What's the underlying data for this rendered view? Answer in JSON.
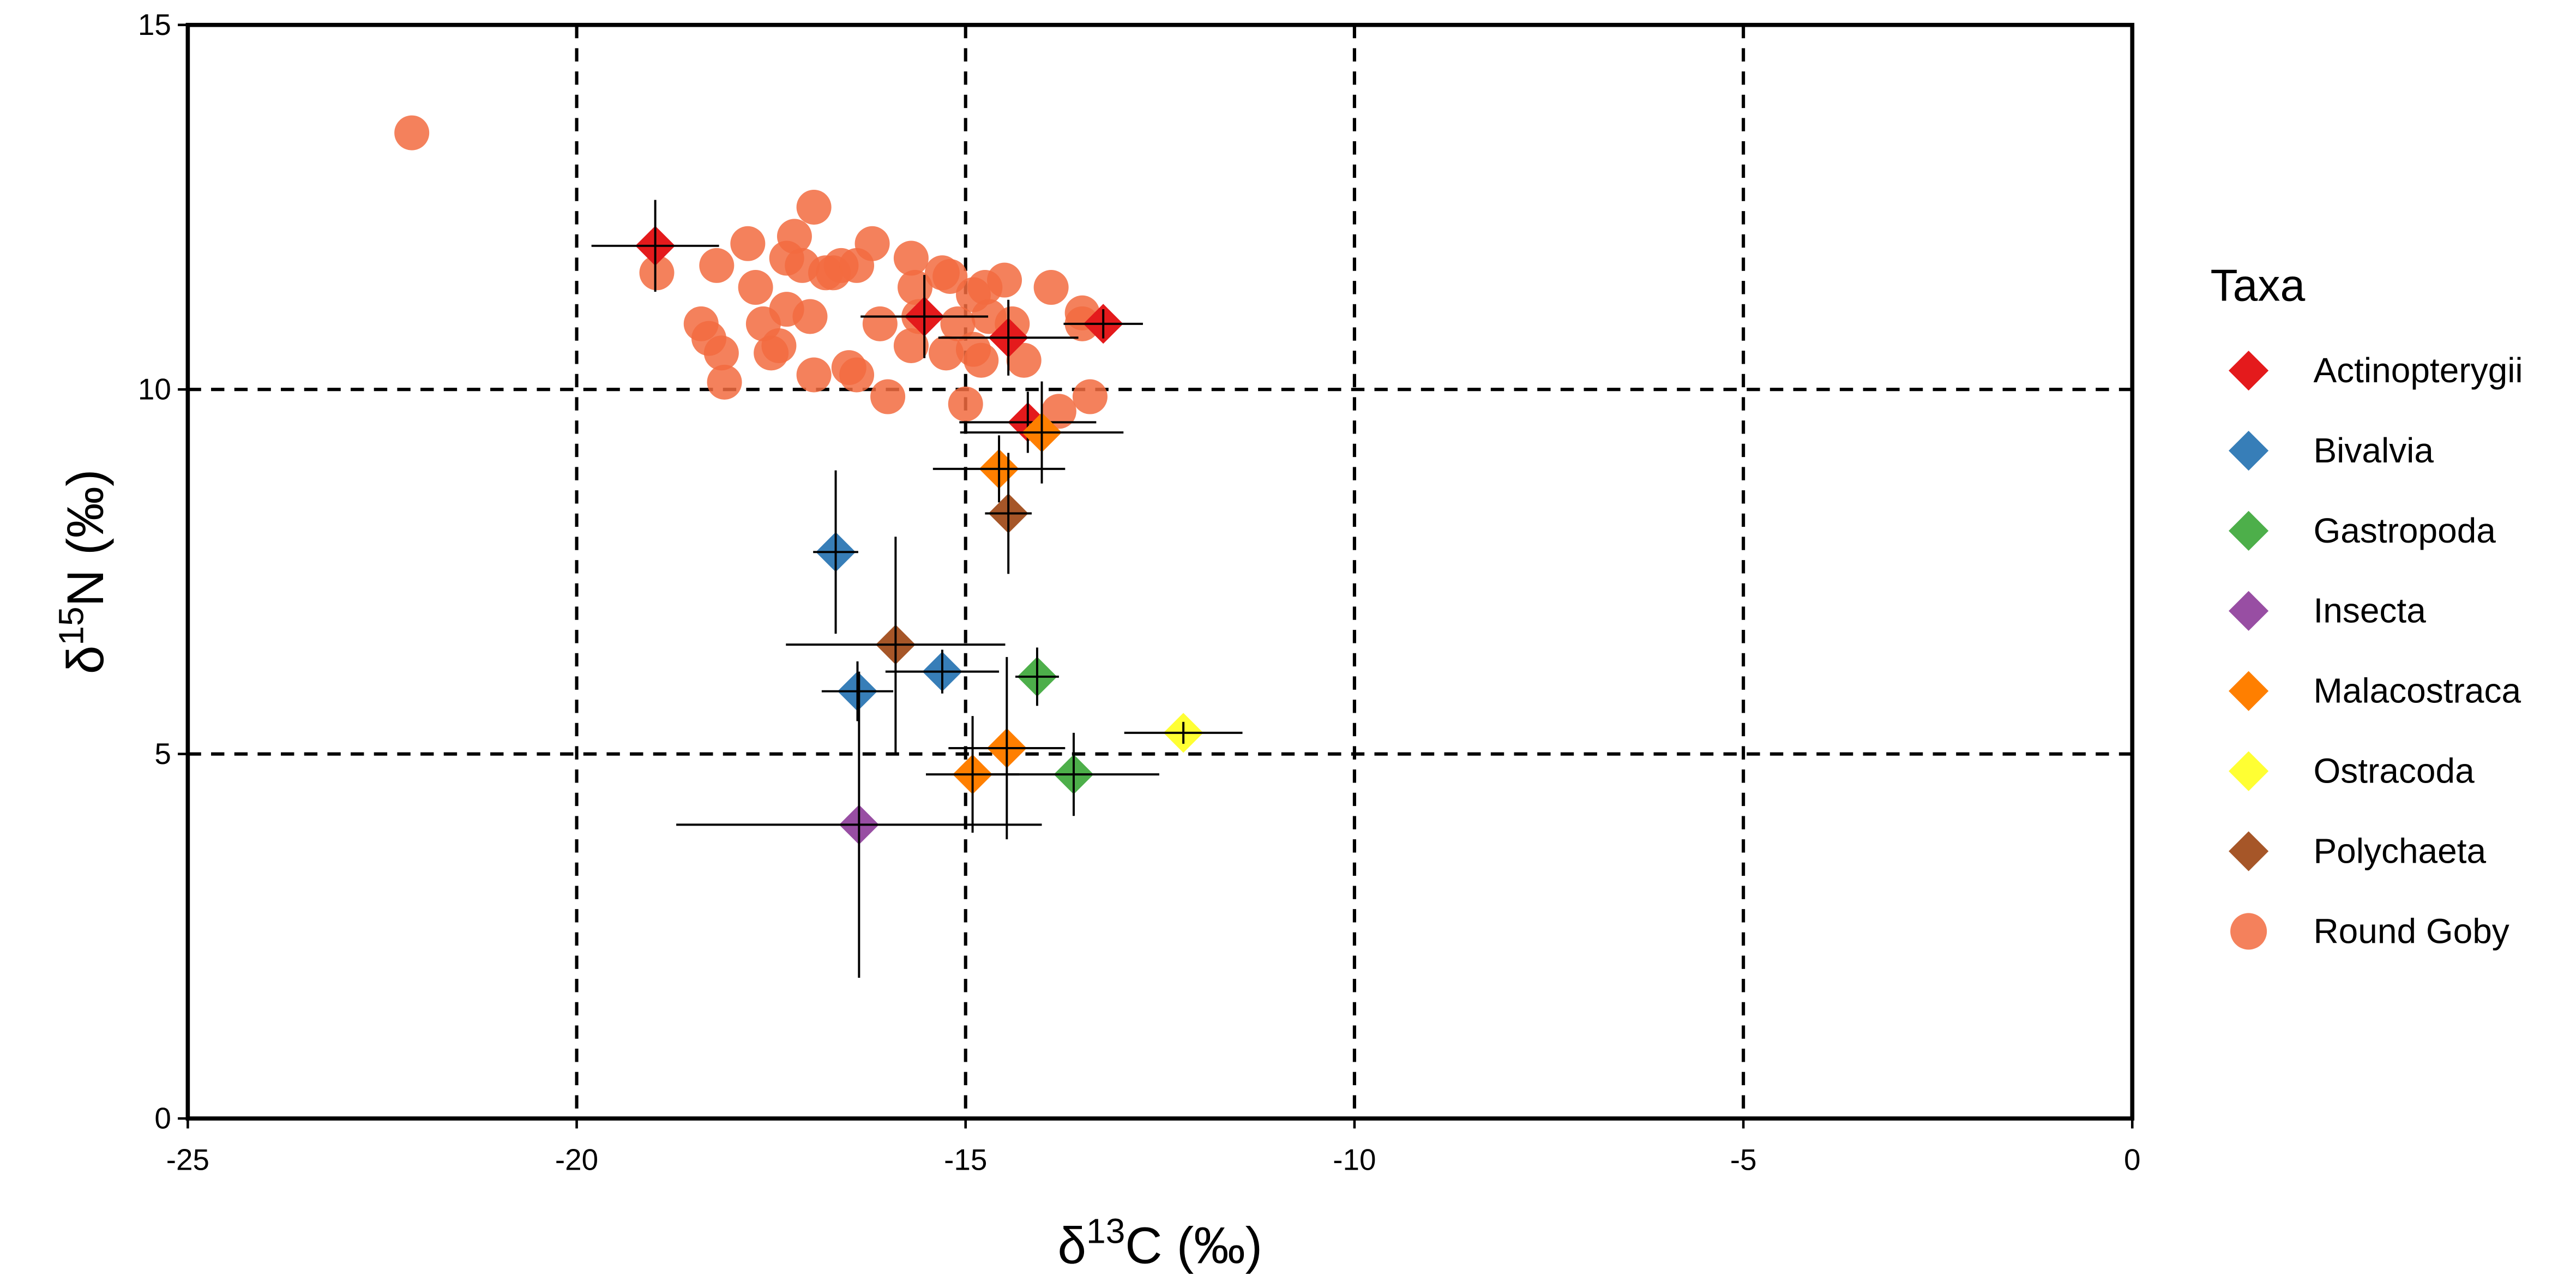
{
  "chart_data": {
    "type": "scatter",
    "x_label": [
      "δ",
      "13",
      "C (‰)"
    ],
    "y_label": [
      "δ",
      "15",
      "N (‰)"
    ],
    "xlim": [
      -25,
      0
    ],
    "xticks": [
      -25,
      -20,
      -15,
      -10,
      -5,
      0
    ],
    "ylim": [
      0,
      15
    ],
    "yticks": [
      0,
      5,
      10,
      15
    ],
    "grid": true,
    "legend_title": "Taxa",
    "legend": "right",
    "series": [
      {
        "name": "Actinopterygii",
        "color": "#e41a1c",
        "marker": "diamond",
        "x": [
          -18.99,
          -15.53,
          -14.45,
          -14.2,
          -13.23
        ],
        "y": [
          11.97,
          11.0,
          10.71,
          9.55,
          10.9
        ],
        "xerr": [
          0.82,
          0.82,
          0.9,
          0.88,
          0.51
        ],
        "yerr": [
          0.63,
          0.57,
          0.52,
          0.42,
          0.2
        ]
      },
      {
        "name": "Bivalvia",
        "color": "#377eb8",
        "marker": "diamond",
        "x": [
          -16.67,
          -16.39,
          -15.3
        ],
        "y": [
          7.77,
          5.86,
          6.13
        ],
        "xerr": [
          0.29,
          0.46,
          0.73
        ],
        "yerr": [
          1.12,
          0.41,
          0.3
        ]
      },
      {
        "name": "Gastropoda",
        "color": "#4daf4a",
        "marker": "diamond",
        "x": [
          -14.08,
          -13.61
        ],
        "y": [
          6.06,
          4.72
        ],
        "xerr": [
          0.28,
          1.1
        ],
        "yerr": [
          0.4,
          0.57
        ]
      },
      {
        "name": "Insecta",
        "color": "#984ea3",
        "marker": "diamond",
        "x": [
          -16.37
        ],
        "y": [
          4.03
        ],
        "xerr": [
          2.35
        ],
        "yerr": [
          2.1
        ]
      },
      {
        "name": "Malacostraca",
        "color": "#ff7f00",
        "marker": "diamond",
        "x": [
          -14.57,
          -14.02,
          -14.47,
          -14.91
        ],
        "y": [
          8.91,
          9.41,
          5.08,
          4.72
        ],
        "xerr": [
          0.85,
          1.05,
          0.75,
          0.6
        ],
        "yerr": [
          0.46,
          0.7,
          1.25,
          0.8
        ]
      },
      {
        "name": "Ostracoda",
        "color": "#ffff33",
        "marker": "diamond",
        "x": [
          -12.2
        ],
        "y": [
          5.29
        ],
        "xerr": [
          0.76
        ],
        "yerr": [
          0.15
        ]
      },
      {
        "name": "Polychaeta",
        "color": "#a65628",
        "marker": "diamond",
        "x": [
          -15.9,
          -14.45
        ],
        "y": [
          6.5,
          8.3
        ],
        "xerr": [
          1.41,
          0.3
        ],
        "yerr": [
          1.48,
          0.83
        ]
      },
      {
        "name": "Round Goby",
        "color": "#f26b3f",
        "marker": "circle",
        "x": [
          -22.12,
          -18.97,
          -18.2,
          -18.4,
          -18.3,
          -18.14,
          -18.1,
          -17.8,
          -17.7,
          -17.6,
          -17.5,
          -17.4,
          -17.3,
          -17.3,
          -17.2,
          -17.1,
          -17.0,
          -16.95,
          -16.95,
          -16.8,
          -16.7,
          -16.6,
          -16.5,
          -16.4,
          -16.4,
          -16.2,
          -16.1,
          -16.0,
          -15.7,
          -15.7,
          -15.65,
          -15.6,
          -15.3,
          -15.25,
          -15.2,
          -15.1,
          -15.0,
          -14.9,
          -14.9,
          -14.8,
          -14.75,
          -14.7,
          -14.5,
          -14.4,
          -14.25,
          -13.9,
          -13.8,
          -13.5,
          -13.5,
          -13.4
        ],
        "y": [
          13.52,
          11.6,
          11.7,
          10.9,
          10.7,
          10.5,
          10.1,
          12.0,
          11.4,
          10.9,
          10.5,
          10.6,
          11.1,
          11.8,
          12.1,
          11.7,
          11.0,
          12.5,
          10.2,
          11.6,
          11.6,
          11.7,
          10.3,
          10.2,
          11.7,
          12.0,
          10.9,
          9.9,
          11.8,
          10.6,
          11.4,
          11.0,
          11.6,
          10.5,
          11.55,
          10.9,
          9.8,
          11.3,
          10.55,
          10.4,
          11.4,
          11.0,
          11.5,
          10.9,
          10.4,
          11.4,
          9.7,
          11.05,
          10.9,
          9.9
        ]
      }
    ]
  }
}
